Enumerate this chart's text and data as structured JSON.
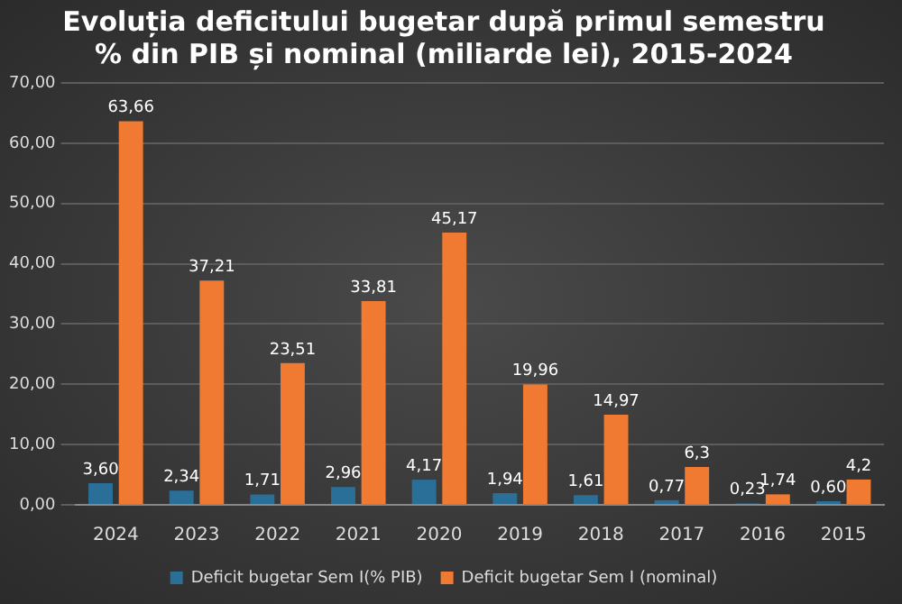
{
  "chart_data": {
    "type": "bar",
    "title": "Evoluția deficitului bugetar după primul semestru\n% din PIB și nominal (miliarde lei), 2015-2024",
    "categories": [
      "2024",
      "2023",
      "2022",
      "2021",
      "2020",
      "2019",
      "2018",
      "2017",
      "2016",
      "2015"
    ],
    "series": [
      {
        "name": "Deficit bugetar Sem I(% PIB)",
        "color": "#2a6f97",
        "values": [
          3.6,
          2.34,
          1.71,
          2.96,
          4.17,
          1.94,
          1.61,
          0.77,
          0.23,
          0.6
        ],
        "value_labels": [
          "3,60",
          "2,34",
          "1,71",
          "2,96",
          "4,17",
          "1,94",
          "1,61",
          "0,77",
          "0,23",
          "0,60"
        ]
      },
      {
        "name": "Deficit bugetar Sem I (nominal)",
        "color": "#f07a32",
        "values": [
          63.66,
          37.21,
          23.51,
          33.81,
          45.17,
          19.96,
          14.97,
          6.3,
          1.74,
          4.2
        ],
        "value_labels": [
          "63,66",
          "37,21",
          "23,51",
          "33,81",
          "45,17",
          "19,96",
          "14,97",
          "6,3",
          "1,74",
          "4,2"
        ]
      }
    ],
    "ylim": [
      0,
      70
    ],
    "yticks": [
      {
        "value": 0,
        "label": "0,00"
      },
      {
        "value": 10,
        "label": "10,00"
      },
      {
        "value": 20,
        "label": "20,00"
      },
      {
        "value": 30,
        "label": "30,00"
      },
      {
        "value": 40,
        "label": "40,00"
      },
      {
        "value": 50,
        "label": "50,00"
      },
      {
        "value": 60,
        "label": "60,00"
      },
      {
        "value": 70,
        "label": "70,00"
      }
    ],
    "grid": "y",
    "legend": "bottom"
  }
}
